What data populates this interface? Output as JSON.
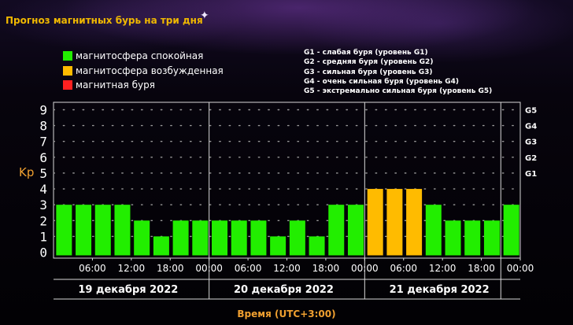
{
  "title": "Прогноз магнитных бурь на три дня",
  "legend": [
    {
      "label": "магнитосфера спокойная",
      "color": "#22ee00"
    },
    {
      "label": "магнитосфера возбужденная",
      "color": "#ffbb00"
    },
    {
      "label": "магнитная буря",
      "color": "#ff2020"
    }
  ],
  "g_legend": [
    "G1 - слабая буря (уровень G1)",
    "G2 - средняя буря (уровень G2)",
    "G3 - сильная буря (уровень G3)",
    "G4 - очень сильная буря (уровень G4)",
    "G5 - экстремально сильная буря (уровень G5)"
  ],
  "chart_data": {
    "type": "bar",
    "ylabel": "Kp",
    "xlabel": "Время (UTC+3:00)",
    "ylim": [
      0,
      9
    ],
    "yticks": [
      "0",
      "1",
      "2",
      "3",
      "4",
      "5",
      "6",
      "7",
      "8",
      "9"
    ],
    "right_ticks": [
      {
        "label": "G1",
        "value": 5
      },
      {
        "label": "G2",
        "value": 6
      },
      {
        "label": "G3",
        "value": 7
      },
      {
        "label": "G4",
        "value": 8
      },
      {
        "label": "G5",
        "value": 9
      }
    ],
    "x_ticks": [
      "06:00",
      "12:00",
      "18:00",
      "00:00",
      "06:00",
      "12:00",
      "18:00",
      "00:00",
      "06:00",
      "12:00",
      "18:00",
      "00:00"
    ],
    "days": [
      "19 декабря 2022",
      "20 декабря 2022",
      "21 декабря 2022"
    ],
    "values": [
      3,
      3,
      3,
      3,
      2,
      1,
      2,
      2,
      2,
      2,
      2,
      1,
      2,
      1,
      3,
      3,
      4,
      4,
      4,
      3,
      2,
      2,
      2,
      3
    ],
    "colors": {
      "quiet": "#22ee00",
      "active": "#ffbb00",
      "storm": "#ff2020"
    },
    "grid": true
  }
}
